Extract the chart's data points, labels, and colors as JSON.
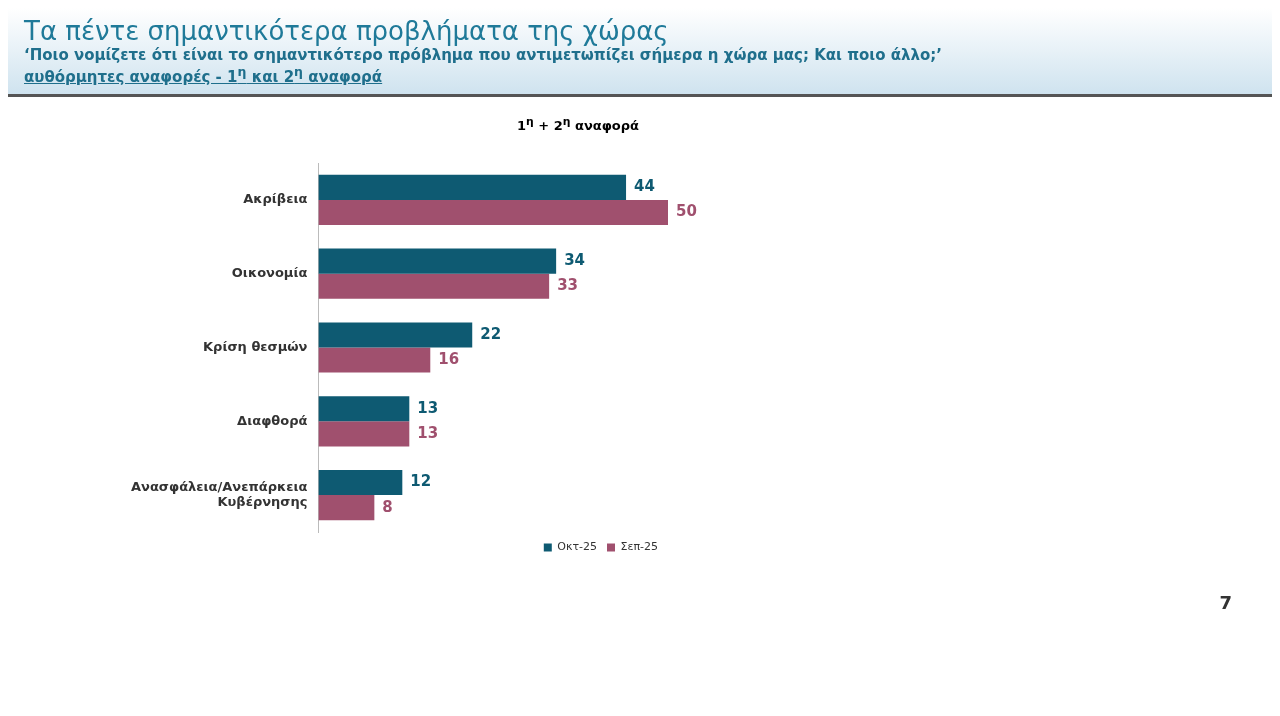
{
  "chart_data": {
    "type": "bar",
    "orientation": "horizontal",
    "title": "Τα πέντε σημαντικότερα προβλήματα της χώρας",
    "subtitle": "‘Ποιο νομίζετε ότι είναι το σημαντικότερο πρόβλημα που αντιμετωπίζει σήμερα η χώρα μας; Και ποιο άλλο;’",
    "annotations": [
      "αυθόρμητες αναφορές - 1$^{η}$ και 2$^{η}$ αναφορά",
      "1$^{η}$ + 2$^{η}$ αναφορά",
      "7"
    ],
    "categories": [
      "Ακρίβεια",
      "Οικονομία",
      "Κρίση θεσμών",
      "Διαφθορά",
      "Ανασφάλεια/Ανεπάρκεια Κυβέρνησης"
    ],
    "series": [
      {
        "name": "Οκτ-25",
        "color": "#0e5a72",
        "values": [
          44,
          34,
          22,
          13,
          12
        ]
      },
      {
        "name": "Σεπ-25",
        "color": "#a0506e",
        "values": [
          50,
          33,
          16,
          13,
          8
        ]
      }
    ],
    "data_labels": true,
    "legend": "bottom right",
    "tick_labels": "y",
    "grid": false
  }
}
